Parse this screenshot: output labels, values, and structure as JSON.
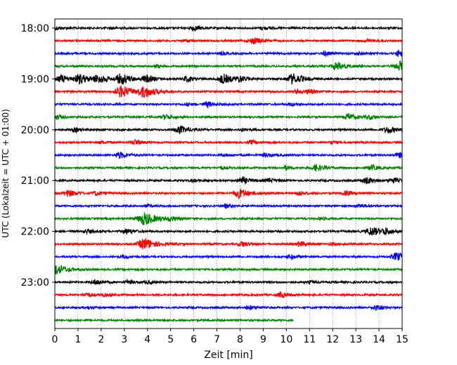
{
  "chart_data": {
    "type": "line",
    "xlabel": "Zeit  [min]",
    "ylabel": "UTC (Lokalzeit = UTC + 01:00)",
    "xlim": [
      0,
      15
    ],
    "x_ticks": [
      "0",
      "1",
      "2",
      "3",
      "4",
      "5",
      "6",
      "7",
      "8",
      "9",
      "10",
      "11",
      "12",
      "13",
      "14",
      "15"
    ],
    "y_tick_labels": [
      "18:00",
      "19:00",
      "20:00",
      "21:00",
      "22:00",
      "23:00"
    ],
    "grid": "vertical dotted",
    "series_colors": [
      "#000000",
      "#ff0000",
      "#0000ff",
      "#008000"
    ],
    "traces": [
      {
        "start": "18:00",
        "color": "#000000",
        "end_min": 15,
        "bursts": [
          [
            0.1,
            0.25
          ],
          [
            6.0,
            0.4
          ],
          [
            9.0,
            0.2
          ],
          [
            2.5,
            0.15
          ]
        ]
      },
      {
        "start": "18:15",
        "color": "#ff0000",
        "end_min": 15,
        "bursts": [
          [
            8.6,
            0.5
          ],
          [
            5.7,
            0.2
          ],
          [
            13.5,
            0.2
          ]
        ]
      },
      {
        "start": "18:30",
        "color": "#0000ff",
        "end_min": 15,
        "bursts": [
          [
            14.9,
            0.45
          ],
          [
            11.7,
            0.3
          ],
          [
            13.1,
            0.2
          ],
          [
            7.2,
            0.15
          ]
        ]
      },
      {
        "start": "18:45",
        "color": "#008000",
        "end_min": 15,
        "bursts": [
          [
            12.2,
            0.6
          ],
          [
            14.9,
            0.7
          ],
          [
            4.4,
            0.2
          ]
        ]
      },
      {
        "start": "19:00",
        "color": "#000000",
        "end_min": 15,
        "bursts": [
          [
            1.1,
            0.7
          ],
          [
            1.9,
            0.6
          ],
          [
            2.9,
            0.8
          ],
          [
            4.0,
            0.5
          ],
          [
            7.3,
            0.7
          ],
          [
            8.0,
            0.4
          ],
          [
            10.3,
            0.8
          ],
          [
            5.7,
            0.4
          ],
          [
            0.3,
            0.6
          ]
        ]
      },
      {
        "start": "19:15",
        "color": "#ff0000",
        "end_min": 15,
        "bursts": [
          [
            2.9,
            0.9
          ],
          [
            3.9,
            0.8
          ],
          [
            11.0,
            0.3
          ],
          [
            10.5,
            0.3
          ]
        ]
      },
      {
        "start": "19:30",
        "color": "#0000ff",
        "end_min": 15,
        "bursts": [
          [
            6.6,
            0.4
          ],
          [
            5.7,
            0.2
          ],
          [
            10.2,
            0.2
          ]
        ]
      },
      {
        "start": "19:45",
        "color": "#008000",
        "end_min": 15,
        "bursts": [
          [
            4.8,
            0.4
          ],
          [
            12.7,
            0.5
          ],
          [
            13.6,
            0.3
          ],
          [
            0.1,
            0.3
          ]
        ]
      },
      {
        "start": "20:00",
        "color": "#000000",
        "end_min": 15,
        "bursts": [
          [
            5.4,
            0.6
          ],
          [
            14.4,
            0.5
          ],
          [
            0.9,
            0.3
          ],
          [
            8.1,
            0.2
          ]
        ]
      },
      {
        "start": "20:15",
        "color": "#ff0000",
        "end_min": 15,
        "bursts": [
          [
            3.5,
            0.4
          ],
          [
            8.5,
            0.3
          ],
          [
            2.0,
            0.2
          ],
          [
            12.0,
            0.2
          ]
        ]
      },
      {
        "start": "20:30",
        "color": "#0000ff",
        "end_min": 15,
        "bursts": [
          [
            2.8,
            0.5
          ],
          [
            14.9,
            0.4
          ],
          [
            9.1,
            0.3
          ],
          [
            7.3,
            0.2
          ]
        ]
      },
      {
        "start": "20:45",
        "color": "#008000",
        "end_min": 15,
        "bursts": [
          [
            11.3,
            0.5
          ],
          [
            13.7,
            0.4
          ],
          [
            10.0,
            0.3
          ],
          [
            7.2,
            0.2
          ]
        ]
      },
      {
        "start": "21:00",
        "color": "#000000",
        "end_min": 15,
        "bursts": [
          [
            8.1,
            0.5
          ],
          [
            13.5,
            0.5
          ],
          [
            14.6,
            0.4
          ],
          [
            9.3,
            0.3
          ],
          [
            6.0,
            0.2
          ]
        ]
      },
      {
        "start": "21:15",
        "color": "#ff0000",
        "end_min": 15,
        "bursts": [
          [
            8.0,
            0.7
          ],
          [
            0.6,
            0.5
          ],
          [
            1.8,
            0.3
          ],
          [
            10.6,
            0.3
          ],
          [
            12.6,
            0.3
          ]
        ]
      },
      {
        "start": "21:30",
        "color": "#0000ff",
        "end_min": 15,
        "bursts": [
          [
            7.4,
            0.3
          ],
          [
            13.2,
            0.3
          ],
          [
            4.0,
            0.2
          ]
        ]
      },
      {
        "start": "21:45",
        "color": "#008000",
        "end_min": 15,
        "bursts": [
          [
            3.9,
            1.0
          ],
          [
            5.0,
            0.3
          ],
          [
            11.5,
            0.2
          ]
        ]
      },
      {
        "start": "22:00",
        "color": "#000000",
        "end_min": 15,
        "bursts": [
          [
            13.7,
            0.7
          ],
          [
            14.3,
            0.4
          ],
          [
            3.1,
            0.4
          ],
          [
            1.4,
            0.3
          ]
        ]
      },
      {
        "start": "22:15",
        "color": "#ff0000",
        "end_min": 15,
        "bursts": [
          [
            3.9,
            0.9
          ],
          [
            8.1,
            0.4
          ],
          [
            10.6,
            0.4
          ],
          [
            12.0,
            0.2
          ]
        ]
      },
      {
        "start": "22:30",
        "color": "#0000ff",
        "end_min": 15,
        "bursts": [
          [
            14.8,
            0.6
          ],
          [
            10.2,
            0.3
          ],
          [
            3.0,
            0.2
          ]
        ]
      },
      {
        "start": "22:45",
        "color": "#008000",
        "end_min": 15,
        "bursts": [
          [
            0.1,
            0.8
          ]
        ]
      },
      {
        "start": "23:00",
        "color": "#000000",
        "end_min": 15,
        "bursts": [
          [
            1.8,
            0.4
          ],
          [
            3.2,
            0.3
          ],
          [
            4.0,
            0.2
          ],
          [
            11.1,
            0.2
          ]
        ]
      },
      {
        "start": "23:15",
        "color": "#ff0000",
        "end_min": 15,
        "bursts": [
          [
            1.4,
            0.3
          ],
          [
            9.8,
            0.4
          ],
          [
            2.1,
            0.2
          ]
        ]
      },
      {
        "start": "23:30",
        "color": "#0000ff",
        "end_min": 15,
        "bursts": [
          [
            13.9,
            0.4
          ],
          [
            8.4,
            0.3
          ],
          [
            1.5,
            0.2
          ]
        ]
      },
      {
        "start": "23:45",
        "color": "#008000",
        "end_min": 10.3,
        "bursts": []
      }
    ]
  }
}
